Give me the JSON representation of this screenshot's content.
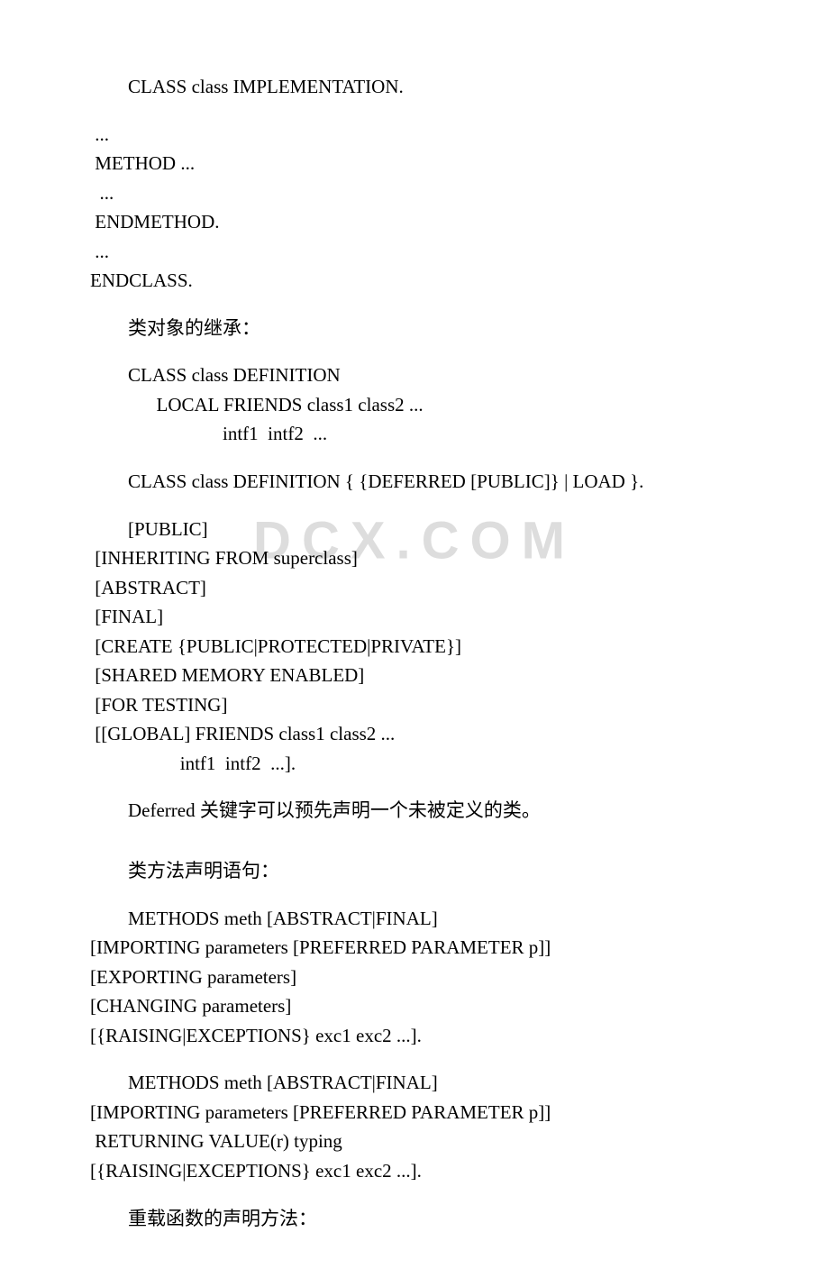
{
  "lines": [
    {
      "text": "CLASS class IMPLEMENTATION.",
      "indent": 1,
      "gapAfter": "small"
    },
    {
      "text": " ...",
      "indent": 0
    },
    {
      "text": " METHOD ...",
      "indent": 0
    },
    {
      "text": "  ...",
      "indent": 0
    },
    {
      "text": " ENDMETHOD.",
      "indent": 0
    },
    {
      "text": " ...",
      "indent": 0
    },
    {
      "text": "ENDCLASS.",
      "indent": 0,
      "gapAfter": "small"
    },
    {
      "text": "类对象的继承：",
      "indent": 1,
      "gapAfter": "small"
    },
    {
      "text": "CLASS class DEFINITION",
      "indent": 1
    },
    {
      "text": "      LOCAL FRIENDS class1 class2 ...",
      "indent": 1
    },
    {
      "text": "                    intf1  intf2  ...",
      "indent": 1,
      "gapAfter": "small"
    },
    {
      "text": "CLASS class DEFINITION { {DEFERRED [PUBLIC]} | LOAD }.",
      "indent": 1,
      "gapAfter": "small"
    },
    {
      "text": "[PUBLIC]",
      "indent": 1
    },
    {
      "text": " [INHERITING FROM superclass]",
      "indent": 0
    },
    {
      "text": " [ABSTRACT]",
      "indent": 0
    },
    {
      "text": " [FINAL]",
      "indent": 0
    },
    {
      "text": " [CREATE {PUBLIC|PROTECTED|PRIVATE}]",
      "indent": 0
    },
    {
      "text": " [SHARED MEMORY ENABLED]",
      "indent": 0
    },
    {
      "text": " [FOR TESTING]",
      "indent": 0
    },
    {
      "text": " [[GLOBAL] FRIENDS class1 class2 ...",
      "indent": 0
    },
    {
      "text": "                   intf1  intf2  ...].",
      "indent": 0,
      "gapAfter": "small"
    },
    {
      "text": "Deferred 关键字可以预先声明一个未被定义的类。",
      "indent": 1,
      "gapAfter": "large"
    },
    {
      "text": "类方法声明语句：",
      "indent": 1,
      "gapAfter": "small"
    },
    {
      "text": "METHODS meth [ABSTRACT|FINAL]",
      "indent": 1
    },
    {
      "text": "[IMPORTING parameters [PREFERRED PARAMETER p]]",
      "indent": 0
    },
    {
      "text": "[EXPORTING parameters]",
      "indent": 0
    },
    {
      "text": "[CHANGING parameters]",
      "indent": 0
    },
    {
      "text": "[{RAISING|EXCEPTIONS} exc1 exc2 ...].",
      "indent": 0,
      "gapAfter": "small"
    },
    {
      "text": "METHODS meth [ABSTRACT|FINAL]",
      "indent": 1
    },
    {
      "text": "[IMPORTING parameters [PREFERRED PARAMETER p]]",
      "indent": 0
    },
    {
      "text": " RETURNING VALUE(r) typing",
      "indent": 0
    },
    {
      "text": "[{RAISING|EXCEPTIONS} exc1 exc2 ...].",
      "indent": 0,
      "gapAfter": "small"
    },
    {
      "text": "重载函数的声明方法：",
      "indent": 1
    }
  ],
  "watermark": "DCX.COM"
}
